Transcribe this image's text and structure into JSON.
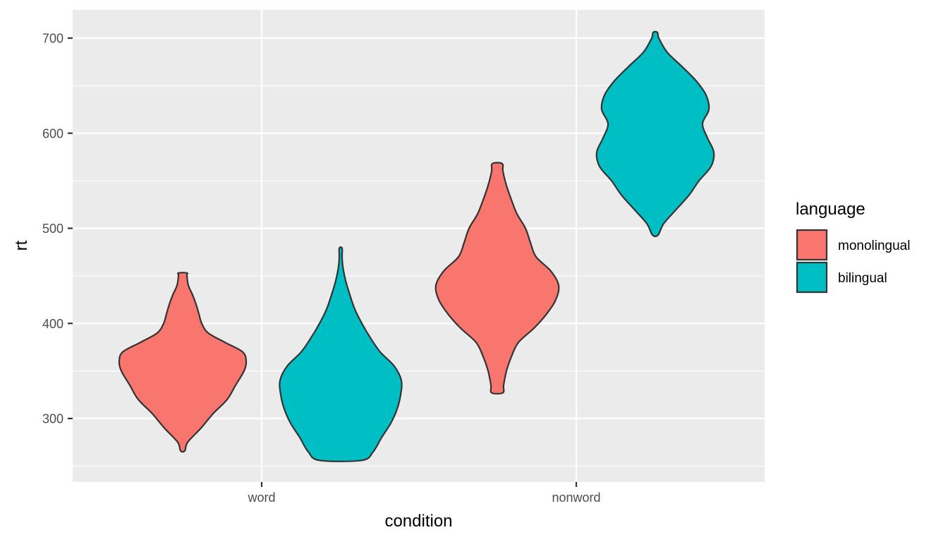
{
  "chart_data": {
    "type": "violin",
    "xlabel": "condition",
    "ylabel": "rt",
    "categories": [
      "word",
      "nonword"
    ],
    "y_ticks": [
      300,
      400,
      500,
      600,
      700
    ],
    "y_minor_ticks": [
      250,
      350,
      450,
      550,
      650
    ],
    "ylim": [
      235,
      730
    ],
    "grid": true,
    "legend": {
      "title": "language",
      "position": "right",
      "entries": [
        {
          "label": "monolingual",
          "color": "#F8766D"
        },
        {
          "label": "bilingual",
          "color": "#00BFC4"
        }
      ]
    },
    "series": [
      {
        "name": "monolingual",
        "color": "#F8766D",
        "violins": [
          {
            "category": "word",
            "profile": [
              [
                266,
                0.03
              ],
              [
                275,
                0.07
              ],
              [
                290,
                0.26
              ],
              [
                305,
                0.43
              ],
              [
                320,
                0.63
              ],
              [
                335,
                0.75
              ],
              [
                350,
                0.87
              ],
              [
                360,
                0.9
              ],
              [
                370,
                0.85
              ],
              [
                380,
                0.6
              ],
              [
                390,
                0.36
              ],
              [
                400,
                0.27
              ],
              [
                410,
                0.23
              ],
              [
                420,
                0.19
              ],
              [
                430,
                0.14
              ],
              [
                440,
                0.08
              ],
              [
                450,
                0.06
              ],
              [
                453,
                0.06
              ]
            ]
          },
          {
            "category": "nonword",
            "profile": [
              [
                327,
                0.08
              ],
              [
                335,
                0.09
              ],
              [
                350,
                0.13
              ],
              [
                365,
                0.2
              ],
              [
                380,
                0.3
              ],
              [
                395,
                0.52
              ],
              [
                410,
                0.7
              ],
              [
                425,
                0.83
              ],
              [
                440,
                0.87
              ],
              [
                455,
                0.76
              ],
              [
                470,
                0.55
              ],
              [
                485,
                0.47
              ],
              [
                500,
                0.4
              ],
              [
                515,
                0.28
              ],
              [
                530,
                0.2
              ],
              [
                545,
                0.13
              ],
              [
                560,
                0.08
              ],
              [
                568,
                0.07
              ]
            ]
          }
        ]
      },
      {
        "name": "bilingual",
        "color": "#00BFC4",
        "violins": [
          {
            "category": "word",
            "profile": [
              [
                256,
                0.3
              ],
              [
                265,
                0.46
              ],
              [
                280,
                0.58
              ],
              [
                295,
                0.71
              ],
              [
                310,
                0.8
              ],
              [
                325,
                0.85
              ],
              [
                340,
                0.86
              ],
              [
                355,
                0.76
              ],
              [
                370,
                0.56
              ],
              [
                385,
                0.42
              ],
              [
                400,
                0.3
              ],
              [
                415,
                0.2
              ],
              [
                430,
                0.13
              ],
              [
                445,
                0.07
              ],
              [
                460,
                0.03
              ],
              [
                470,
                0.02
              ],
              [
                479,
                0.02
              ]
            ]
          },
          {
            "category": "nonword",
            "profile": [
              [
                493,
                0.04
              ],
              [
                505,
                0.12
              ],
              [
                520,
                0.3
              ],
              [
                535,
                0.48
              ],
              [
                550,
                0.62
              ],
              [
                565,
                0.79
              ],
              [
                580,
                0.83
              ],
              [
                595,
                0.74
              ],
              [
                610,
                0.67
              ],
              [
                625,
                0.76
              ],
              [
                640,
                0.72
              ],
              [
                655,
                0.58
              ],
              [
                670,
                0.38
              ],
              [
                685,
                0.17
              ],
              [
                700,
                0.05
              ],
              [
                706,
                0.03
              ]
            ]
          }
        ]
      }
    ]
  }
}
